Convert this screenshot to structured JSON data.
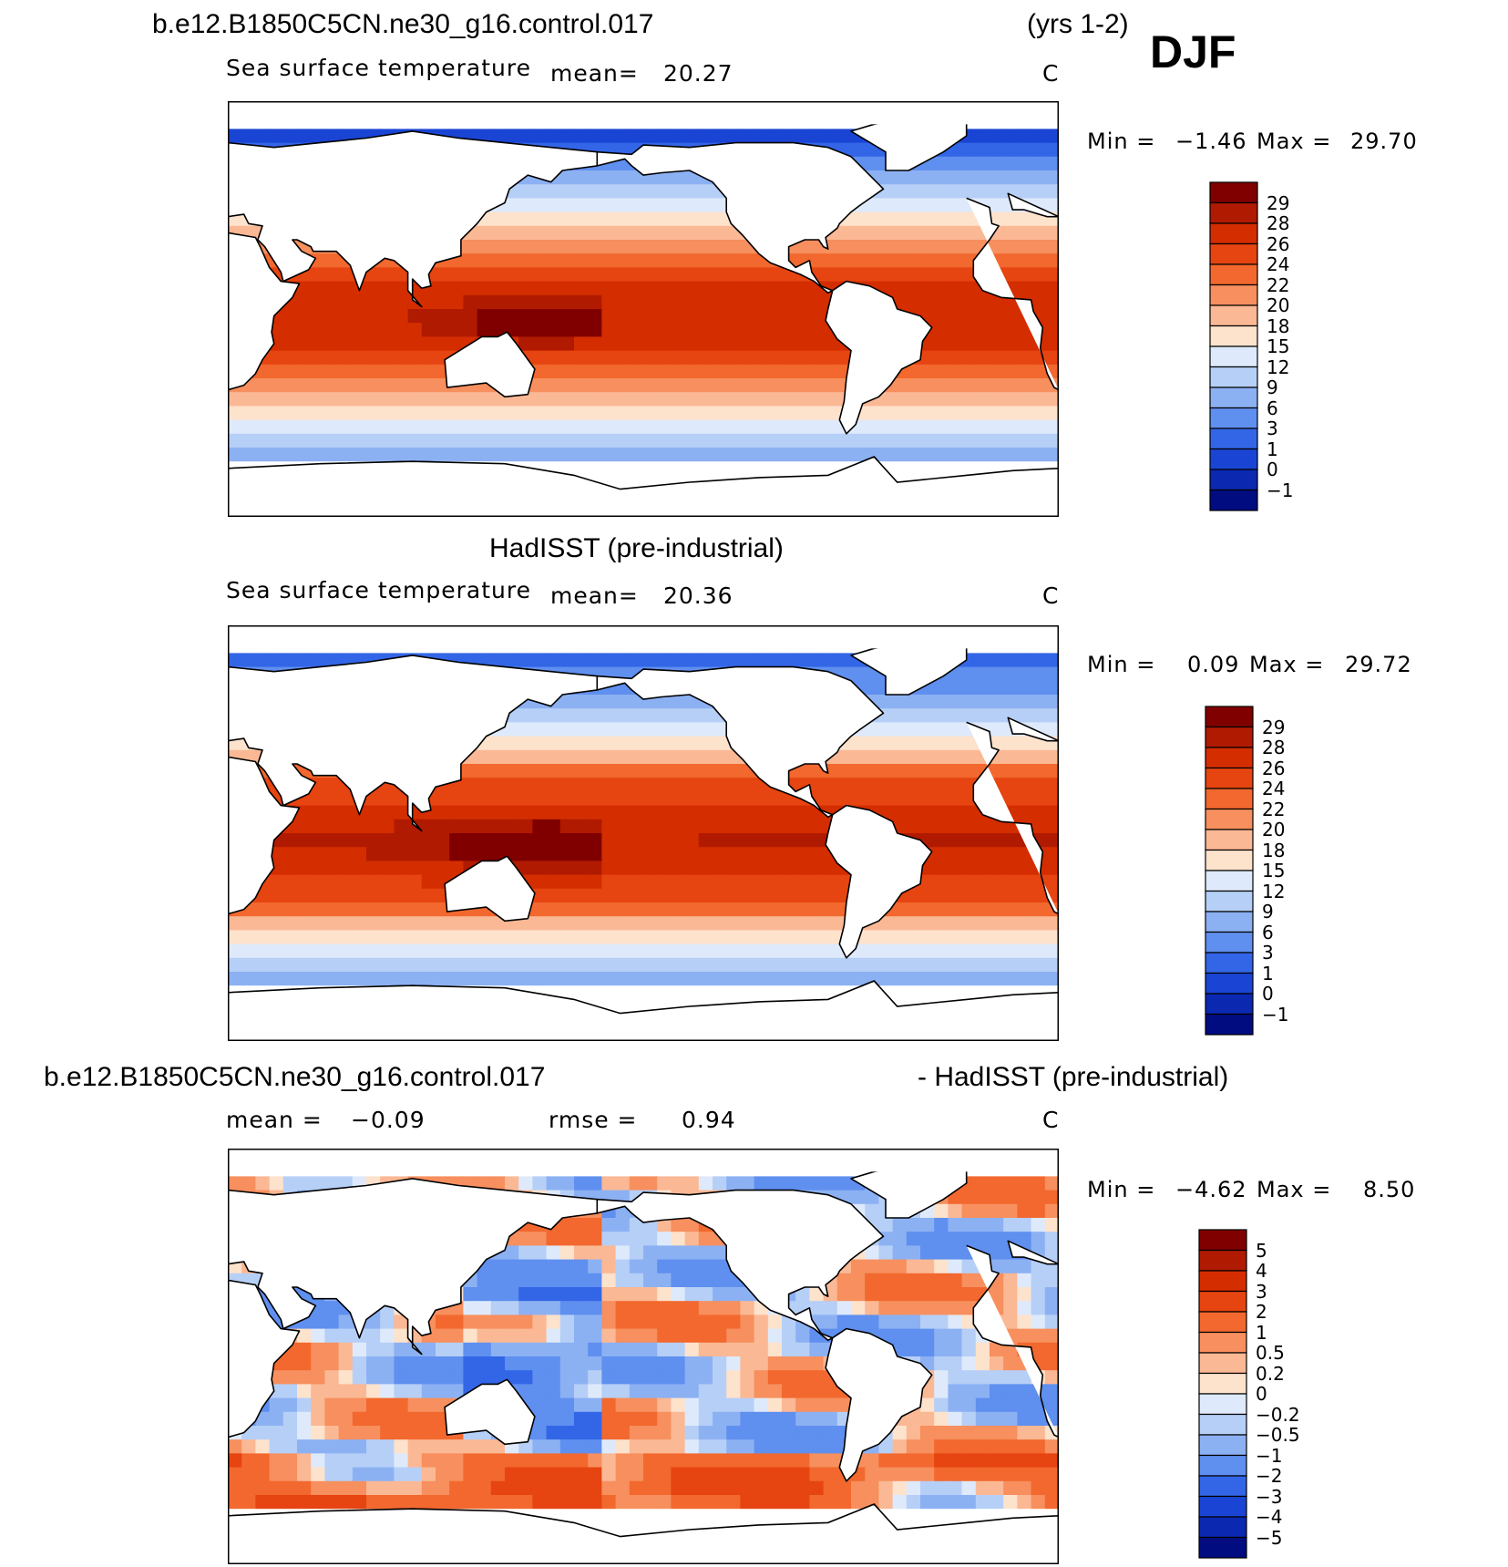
{
  "header": {
    "case_name": "b.e12.B1850C5CN.ne30_g16.control.017",
    "years": "(yrs 1-2)",
    "season": "DJF"
  },
  "panels": [
    {
      "id": "model",
      "field": "Sea surface temperature",
      "mean_label": "mean=",
      "mean_value": "20.27",
      "units": "C",
      "min_label": "Min =",
      "min_value": "−1.46",
      "max_label": "Max =",
      "max_value": "29.70",
      "colorbar_labels": [
        "29",
        "28",
        "26",
        "24",
        "22",
        "20",
        "18",
        "15",
        "12",
        "9",
        "6",
        "3",
        "1",
        "0",
        "−1"
      ]
    },
    {
      "id": "obs",
      "title": "HadISST (pre-industrial)",
      "field": "Sea surface temperature",
      "mean_label": "mean=",
      "mean_value": "20.36",
      "units": "C",
      "min_label": "Min =",
      "min_value": "0.09",
      "max_label": "Max =",
      "max_value": "29.72",
      "colorbar_labels": [
        "29",
        "28",
        "26",
        "24",
        "22",
        "20",
        "18",
        "15",
        "12",
        "9",
        "6",
        "3",
        "1",
        "0",
        "−1"
      ]
    },
    {
      "id": "diff",
      "title_left": "b.e12.B1850C5CN.ne30_g16.control.017",
      "title_right": "- HadISST (pre-industrial)",
      "mean_label": "mean =",
      "mean_value": "−0.09",
      "rmse_label": "rmse =",
      "rmse_value": "0.94",
      "units": "C",
      "min_label": "Min =",
      "min_value": "−4.62",
      "max_label": "Max =",
      "max_value": "8.50",
      "colorbar_labels": [
        "5",
        "4",
        "3",
        "2",
        "1",
        "0.5",
        "0.2",
        "0",
        "−0.2",
        "−0.5",
        "−1",
        "−2",
        "−3",
        "−4",
        "−5"
      ]
    }
  ],
  "colors": {
    "sst_scale": [
      "#800000",
      "#b01a00",
      "#d42d00",
      "#e64410",
      "#f2682e",
      "#f78f5e",
      "#fbb894",
      "#fde2cc",
      "#deeafb",
      "#b6cff7",
      "#8cb1f3",
      "#5f8fef",
      "#3366e6",
      "#1a45d4",
      "#0a28b0",
      "#000c80"
    ],
    "diff_scale": [
      "#800000",
      "#b01a00",
      "#d42d00",
      "#e64410",
      "#f2682e",
      "#f78f5e",
      "#fbb894",
      "#fde2cc",
      "#deeafb",
      "#b6cff7",
      "#8cb1f3",
      "#5f8fef",
      "#3366e6",
      "#1a45d4",
      "#0a28b0",
      "#000c80"
    ]
  }
}
